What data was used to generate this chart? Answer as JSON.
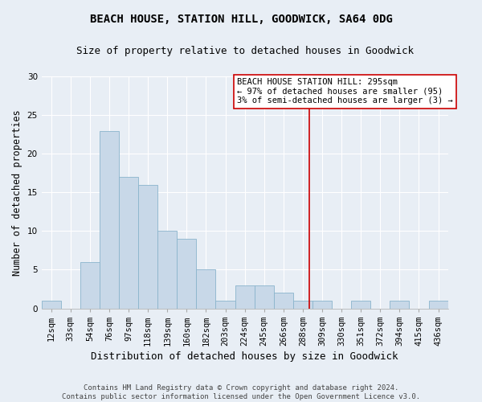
{
  "title": "BEACH HOUSE, STATION HILL, GOODWICK, SA64 0DG",
  "subtitle": "Size of property relative to detached houses in Goodwick",
  "xlabel": "Distribution of detached houses by size in Goodwick",
  "ylabel": "Number of detached properties",
  "footer_line1": "Contains HM Land Registry data © Crown copyright and database right 2024.",
  "footer_line2": "Contains public sector information licensed under the Open Government Licence v3.0.",
  "categories": [
    "12sqm",
    "33sqm",
    "54sqm",
    "76sqm",
    "97sqm",
    "118sqm",
    "139sqm",
    "160sqm",
    "182sqm",
    "203sqm",
    "224sqm",
    "245sqm",
    "266sqm",
    "288sqm",
    "309sqm",
    "330sqm",
    "351sqm",
    "372sqm",
    "394sqm",
    "415sqm",
    "436sqm"
  ],
  "values": [
    1,
    0,
    6,
    23,
    17,
    16,
    10,
    9,
    5,
    1,
    3,
    3,
    2,
    1,
    1,
    0,
    1,
    0,
    1,
    0,
    1
  ],
  "bar_color": "#c8d8e8",
  "bar_edge_color": "#8ab4cc",
  "background_color": "#e8eef5",
  "grid_color": "#ffffff",
  "vline_color": "#cc0000",
  "annotation_text": "BEACH HOUSE STATION HILL: 295sqm\n← 97% of detached houses are smaller (95)\n3% of semi-detached houses are larger (3) →",
  "annotation_box_color": "#ffffff",
  "annotation_border_color": "#cc0000",
  "ylim": [
    0,
    30
  ],
  "yticks": [
    0,
    5,
    10,
    15,
    20,
    25,
    30
  ],
  "title_fontsize": 10,
  "subtitle_fontsize": 9,
  "xlabel_fontsize": 9,
  "ylabel_fontsize": 8.5,
  "tick_fontsize": 7.5,
  "annotation_fontsize": 7.5,
  "footer_fontsize": 6.5
}
